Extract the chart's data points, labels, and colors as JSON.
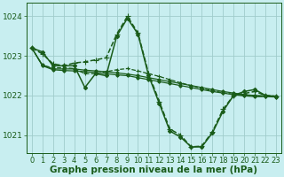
{
  "background_color": "#c8eef0",
  "plot_bg_color": "#c8eef0",
  "grid_color": "#a0cccc",
  "line_color": "#1a5c1a",
  "xlabel": "Graphe pression niveau de la mer (hPa)",
  "xlabel_fontsize": 7.5,
  "tick_fontsize": 6.5,
  "xlim": [
    -0.5,
    23.5
  ],
  "ylim": [
    1020.55,
    1024.35
  ],
  "yticks": [
    1021,
    1022,
    1023,
    1024
  ],
  "xticks": [
    0,
    1,
    2,
    3,
    4,
    5,
    6,
    7,
    8,
    9,
    10,
    11,
    12,
    13,
    14,
    15,
    16,
    17,
    18,
    19,
    20,
    21,
    22,
    23
  ],
  "series": [
    {
      "x": [
        0,
        1,
        2,
        3,
        4,
        5,
        6,
        7,
        8,
        9,
        10,
        11,
        12,
        13,
        14,
        15,
        16,
        17,
        18,
        19,
        20,
        21,
        22,
        23
      ],
      "y": [
        1023.2,
        1023.1,
        1022.75,
        1022.75,
        1022.75,
        1022.2,
        1022.55,
        1022.5,
        1023.5,
        1023.95,
        1023.55,
        1022.5,
        1021.8,
        1021.1,
        1020.95,
        1020.7,
        1020.7,
        1021.05,
        1021.6,
        1022.0,
        1022.1,
        1022.15,
        1022.0,
        1021.98
      ],
      "linestyle": "-",
      "marker": "D",
      "markersize": 2.2,
      "linewidth": 1.1
    },
    {
      "x": [
        0,
        1,
        2,
        3,
        4,
        5,
        6,
        7,
        8,
        9,
        10,
        11,
        12,
        13,
        14,
        15,
        16,
        17,
        18,
        19,
        20,
        21,
        22,
        23
      ],
      "y": [
        1023.2,
        1022.75,
        1022.65,
        1022.63,
        1022.62,
        1022.6,
        1022.58,
        1022.55,
        1022.52,
        1022.5,
        1022.45,
        1022.4,
        1022.35,
        1022.3,
        1022.25,
        1022.2,
        1022.15,
        1022.1,
        1022.06,
        1022.02,
        1021.99,
        1021.97,
        1021.97,
        1021.96
      ],
      "linestyle": "-",
      "marker": "D",
      "markersize": 1.8,
      "linewidth": 0.9
    },
    {
      "x": [
        0,
        1,
        2,
        3,
        4,
        5,
        6,
        7,
        8,
        9,
        10,
        11,
        12,
        13,
        14,
        15,
        16,
        17,
        18,
        19,
        20,
        21,
        22,
        23
      ],
      "y": [
        1023.2,
        1022.77,
        1022.67,
        1022.67,
        1022.67,
        1022.64,
        1022.62,
        1022.6,
        1022.57,
        1022.54,
        1022.5,
        1022.45,
        1022.4,
        1022.35,
        1022.3,
        1022.25,
        1022.2,
        1022.15,
        1022.1,
        1022.06,
        1022.02,
        1022.0,
        1021.99,
        1021.97
      ],
      "linestyle": "-",
      "marker": "D",
      "markersize": 1.8,
      "linewidth": 0.9
    },
    {
      "x": [
        0,
        1,
        2,
        3,
        4,
        5,
        6,
        7,
        8,
        9,
        10,
        11,
        12,
        13,
        14,
        15,
        16,
        17,
        18,
        19,
        20,
        21,
        22,
        23
      ],
      "y": [
        1023.2,
        1022.76,
        1022.7,
        1022.7,
        1022.68,
        1022.55,
        1022.55,
        1022.6,
        1022.65,
        1022.68,
        1022.62,
        1022.55,
        1022.48,
        1022.4,
        1022.32,
        1022.25,
        1022.18,
        1022.12,
        1022.07,
        1022.03,
        1022.0,
        1021.99,
        1021.98,
        1021.97
      ],
      "linestyle": "--",
      "marker": "+",
      "markersize": 3.5,
      "linewidth": 0.9
    },
    {
      "x": [
        0,
        1,
        2,
        3,
        4,
        5,
        6,
        7,
        8,
        9,
        10,
        11,
        12,
        13,
        14,
        15,
        16,
        17,
        18,
        19,
        20,
        21,
        22,
        23
      ],
      "y": [
        1023.2,
        1023.05,
        1022.8,
        1022.75,
        1022.82,
        1022.85,
        1022.9,
        1022.95,
        1023.55,
        1024.0,
        1023.58,
        1022.55,
        1021.85,
        1021.15,
        1021.0,
        1020.7,
        1020.72,
        1021.08,
        1021.65,
        1022.0,
        1022.05,
        1022.1,
        1022.0,
        1021.98
      ],
      "linestyle": "--",
      "marker": "+",
      "markersize": 4.0,
      "linewidth": 1.1
    }
  ]
}
